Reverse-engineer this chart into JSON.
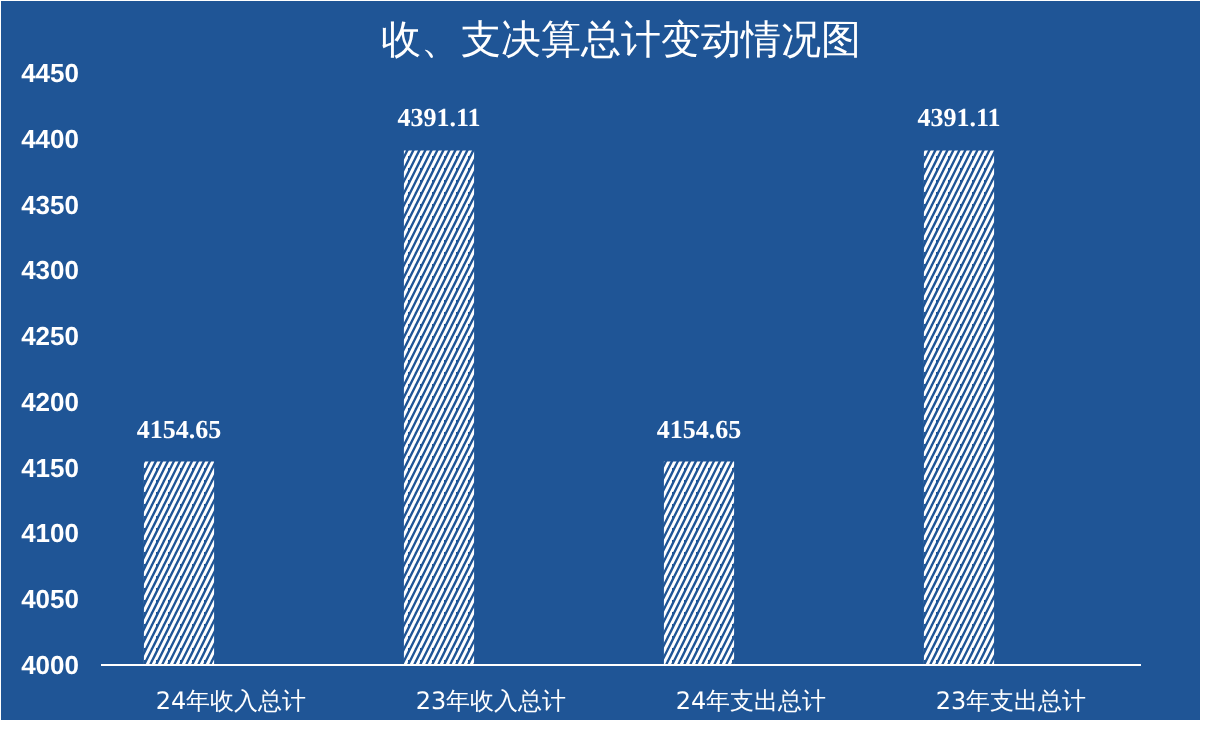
{
  "chart_data": {
    "type": "bar",
    "title": "收、支决算总计变动情况图",
    "categories": [
      "24年收入总计",
      "23年收入总计",
      "24年支出总计",
      "23年支出总计"
    ],
    "values": [
      4154.65,
      4391.11,
      4154.65,
      4391.11
    ],
    "color": "#ffffff",
    "ylim": [
      4000,
      4450
    ],
    "yticks": [
      4000,
      4050,
      4100,
      4150,
      4200,
      4250,
      4300,
      4350,
      4400,
      4450
    ],
    "grid": false,
    "data_labels": true
  }
}
